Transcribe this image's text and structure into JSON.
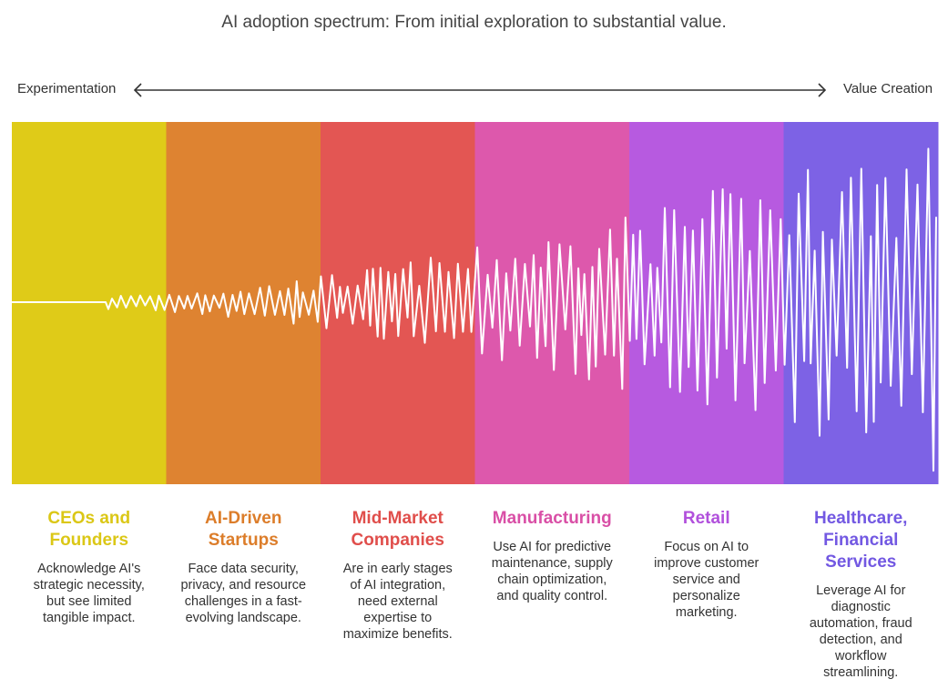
{
  "title": "AI adoption spectrum: From initial exploration to substantial value.",
  "axis": {
    "left_label": "Experimentation",
    "right_label": "Value Creation"
  },
  "colors": {
    "wave": "#ffffff",
    "arrow": "#333333"
  },
  "segments": [
    {
      "title": "CEOs and Founders",
      "description": "Acknowledge AI's strategic necessity, but see limited tangible impact.",
      "color": "#dfcb18",
      "title_color": "#dbc716"
    },
    {
      "title": "AI-Driven Startups",
      "description": "Face data security, privacy, and resource challenges in a fast-evolving landscape.",
      "color": "#de8331",
      "title_color": "#dc7d2a"
    },
    {
      "title": "Mid-Market Companies",
      "description": "Are in early stages of AI integration, need external expertise to maximize benefits.",
      "color": "#e35653",
      "title_color": "#e04e4b"
    },
    {
      "title": "Manufacturing",
      "description": "Use AI for predictive maintenance, supply chain optimization, and quality control.",
      "color": "#dd58ac",
      "title_color": "#d94fa6"
    },
    {
      "title": "Retail",
      "description": "Focus on AI to improve customer service and personalize marketing.",
      "color": "#b75ae0",
      "title_color": "#b150dc"
    },
    {
      "title": "Healthcare, Financial Services",
      "description": "Leverage AI for diagnostic automation, fraud detection, and workflow streamlining.",
      "color": "#7d62e5",
      "title_color": "#7258e2"
    }
  ]
}
